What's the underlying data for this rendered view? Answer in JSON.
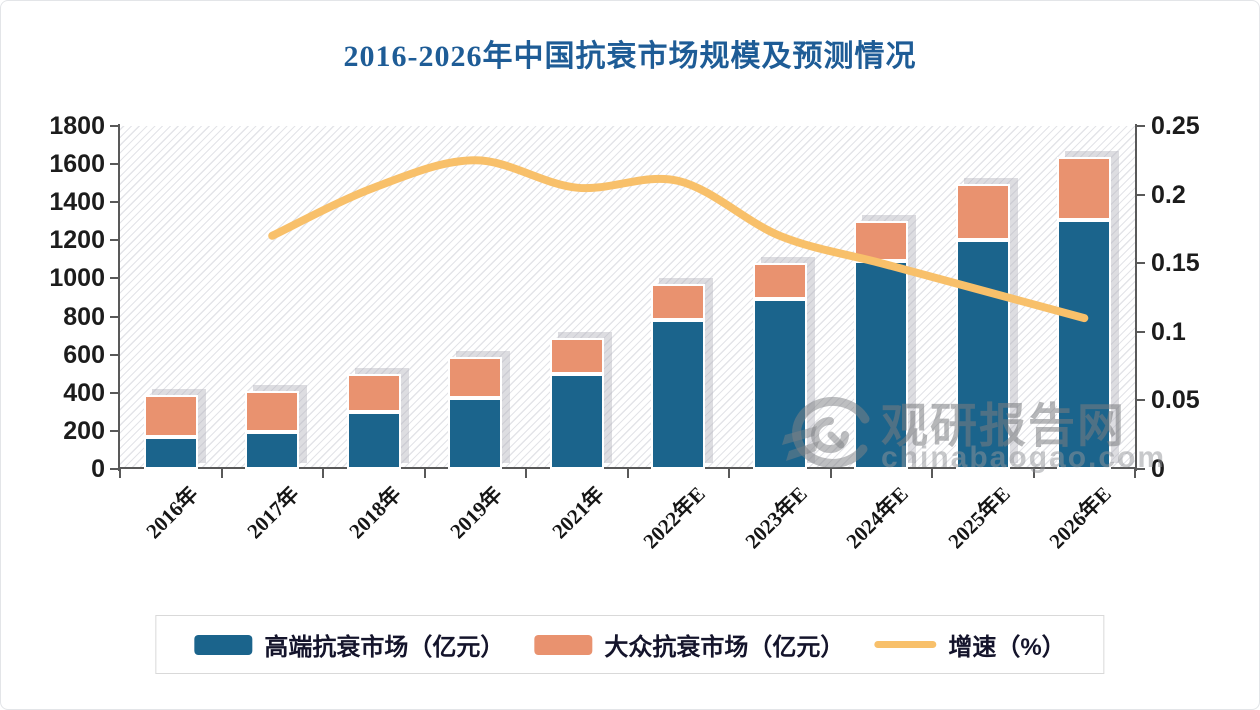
{
  "title": "2016-2026年中国抗衰市场规模及预测情况",
  "watermark": {
    "name": "观研报告网",
    "url": "chinabaogao.com"
  },
  "chart_data": {
    "type": "bar",
    "subtype": "stacked-bars-with-line",
    "title": "2016-2026年中国抗衰市场规模及预测情况",
    "categories": [
      "2016年",
      "2017年",
      "2018年",
      "2019年",
      "2021年",
      "2022年E",
      "2023年E",
      "2024年E",
      "2025年E",
      "2026年E"
    ],
    "series": [
      {
        "name": "高端抗衰市场（亿元）",
        "type": "bar",
        "stack": "market",
        "axis": "left",
        "color": "#1B648C",
        "values": [
          170,
          195,
          300,
          375,
          500,
          780,
          890,
          1090,
          1200,
          1305
        ]
      },
      {
        "name": "大众抗衰市场（亿元）",
        "type": "bar",
        "stack": "market",
        "axis": "left",
        "color": "#E9926F",
        "values": [
          220,
          215,
          200,
          215,
          190,
          190,
          190,
          210,
          295,
          330
        ]
      },
      {
        "name": "增速（%）",
        "type": "line",
        "axis": "right",
        "color": "#F8C06A",
        "values": [
          null,
          0.17,
          0.205,
          0.225,
          0.205,
          0.21,
          0.17,
          0.15,
          0.13,
          0.11
        ]
      }
    ],
    "left_axis": {
      "min": 0,
      "max": 1800,
      "ticks": [
        "0",
        "200",
        "400",
        "600",
        "800",
        "1000",
        "1200",
        "1400",
        "1600",
        "1800"
      ]
    },
    "right_axis": {
      "min": 0,
      "max": 0.25,
      "ticks": [
        "0",
        "0.05",
        "0.1",
        "0.15",
        "0.2",
        "0.25"
      ]
    },
    "legend_position": "bottom",
    "plot_background": "diagonal-hatch",
    "x_label_rotation_deg": -45
  }
}
